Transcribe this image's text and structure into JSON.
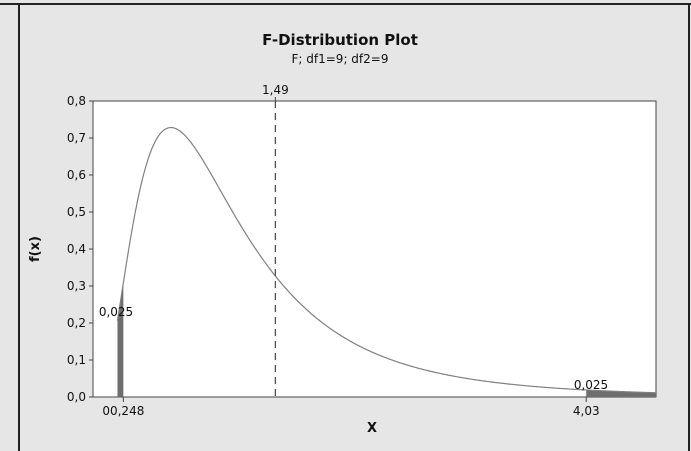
{
  "chart_data": {
    "type": "line",
    "title": "F-Distribution Plot",
    "subtitle": "F; df1=9; df2=9",
    "xlabel": "X",
    "ylabel": "f(x)",
    "xlim": [
      0,
      4.6
    ],
    "ylim": [
      0,
      0.8
    ],
    "yticks": [
      0.0,
      0.1,
      0.2,
      0.3,
      0.4,
      0.5,
      0.6,
      0.7,
      0.8
    ],
    "ytick_labels": [
      "0,0",
      "0,1",
      "0,2",
      "0,3",
      "0,4",
      "0,5",
      "0,6",
      "0,7",
      "0,8"
    ],
    "df1": 9,
    "df2": 9,
    "mean_line": {
      "x": 1.49,
      "label": "1,49"
    },
    "lower_tail": {
      "x": 0.248,
      "tick_label": "00,248",
      "area_label": "0,025"
    },
    "upper_tail": {
      "x": 4.03,
      "tick_label": "4,03",
      "area_label": "0,025"
    },
    "grid": false,
    "legend": "none",
    "colors": {
      "curve": "#808080",
      "shade": "#6e6e6e",
      "plot_bg": "#ffffff",
      "outer_bg": "#e6e6e6"
    }
  }
}
